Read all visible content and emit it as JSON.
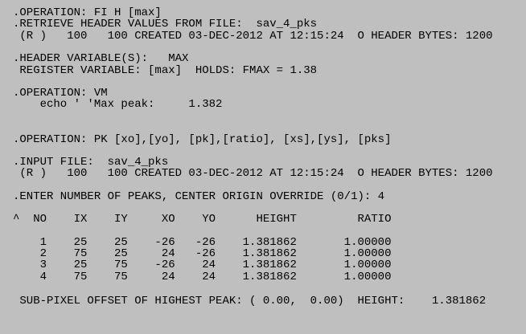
{
  "blocks": [
    [
      ".OPERATION: FI H [max]",
      ".RETRIEVE HEADER VALUES FROM FILE:  sav_4_pks",
      " (R )   100   100 CREATED 03-DEC-2012 AT 12:15:24  O HEADER BYTES: 1200"
    ],
    [
      ".HEADER VARIABLE(S):   MAX",
      " REGISTER VARIABLE: [max]  HOLDS: FMAX = 1.38"
    ],
    [
      ".OPERATION: VM",
      "    echo ' 'Max peak:     1.382"
    ],
    [
      ".OPERATION: PK [xo],[yo], [pk],[ratio], [xs],[ys], [pks]"
    ],
    [
      ".INPUT FILE:  sav_4_pks",
      " (R )   100   100 CREATED 03-DEC-2012 AT 12:15:24  O HEADER BYTES: 1200"
    ],
    [
      ".ENTER NUMBER OF PEAKS, CENTER ORIGIN OVERRIDE (0/1): 4",
      "^  NO    IX    IY     XO    YO      HEIGHT         RATIO"
    ],
    [
      "    1    25    25    -26   -26    1.381862       1.00000",
      "    2    75    25     24   -26    1.381862       1.00000",
      "    3    25    75    -26    24    1.381862       1.00000",
      "    4    75    75     24    24    1.381862       1.00000"
    ],
    [
      " SUB-PIXEL OFFSET OF HIGHEST PEAK: ( 0.00,  0.00)  HEIGHT:    1.381862"
    ]
  ]
}
